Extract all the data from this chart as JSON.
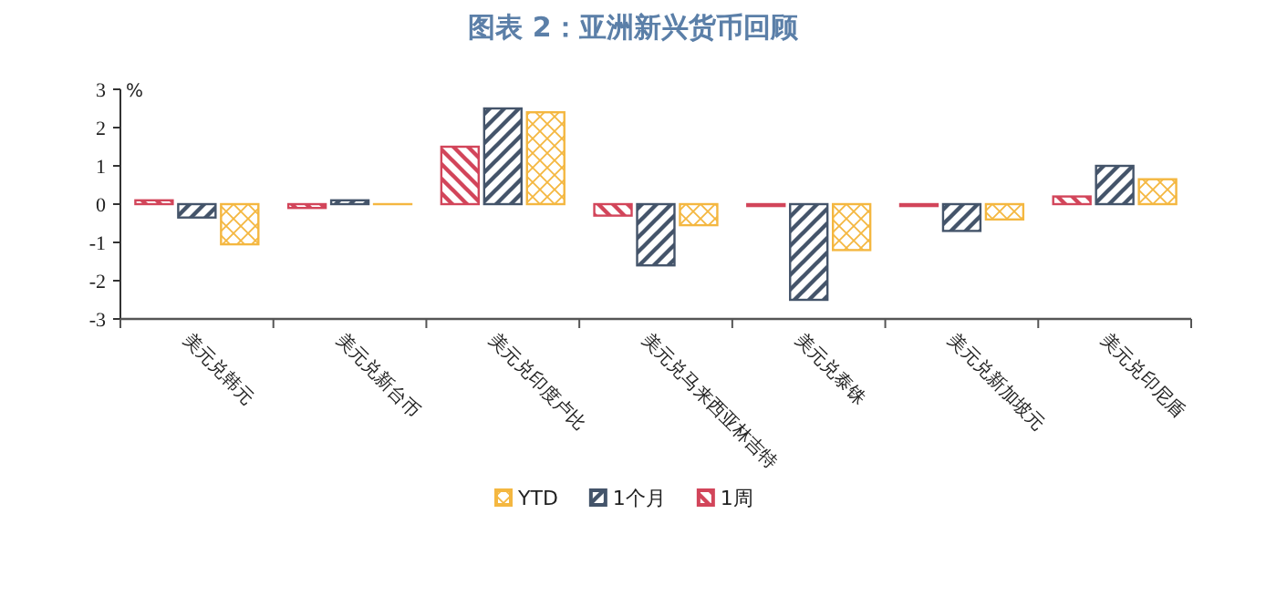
{
  "chart_data": {
    "type": "bar",
    "title": "图表 2：亚洲新兴货币回顾",
    "ylabel": "%",
    "categories": [
      "美元兑韩元",
      "美元兑新台币",
      "美元兑印度卢比",
      "美元兑马来西亚林吉特",
      "美元兑泰铢",
      "美元兑新加坡元",
      "美元兑印尼盾"
    ],
    "series": [
      {
        "name": "1周",
        "color": "#d2455a",
        "values": [
          0.1,
          -0.1,
          1.5,
          -0.3,
          -0.05,
          -0.05,
          0.2
        ]
      },
      {
        "name": "1个月",
        "color": "#44546a",
        "values": [
          -0.35,
          0.1,
          2.5,
          -1.6,
          -2.5,
          -0.7,
          1.0
        ]
      },
      {
        "name": "YTD",
        "color": "#f4b740",
        "values": [
          -1.05,
          0.0,
          2.4,
          -0.55,
          -1.2,
          -0.4,
          0.65
        ]
      }
    ],
    "ylim": [
      -3,
      3
    ],
    "yticks": [
      -3,
      -2,
      -1,
      0,
      1,
      2,
      3
    ],
    "legend": "bottom"
  }
}
